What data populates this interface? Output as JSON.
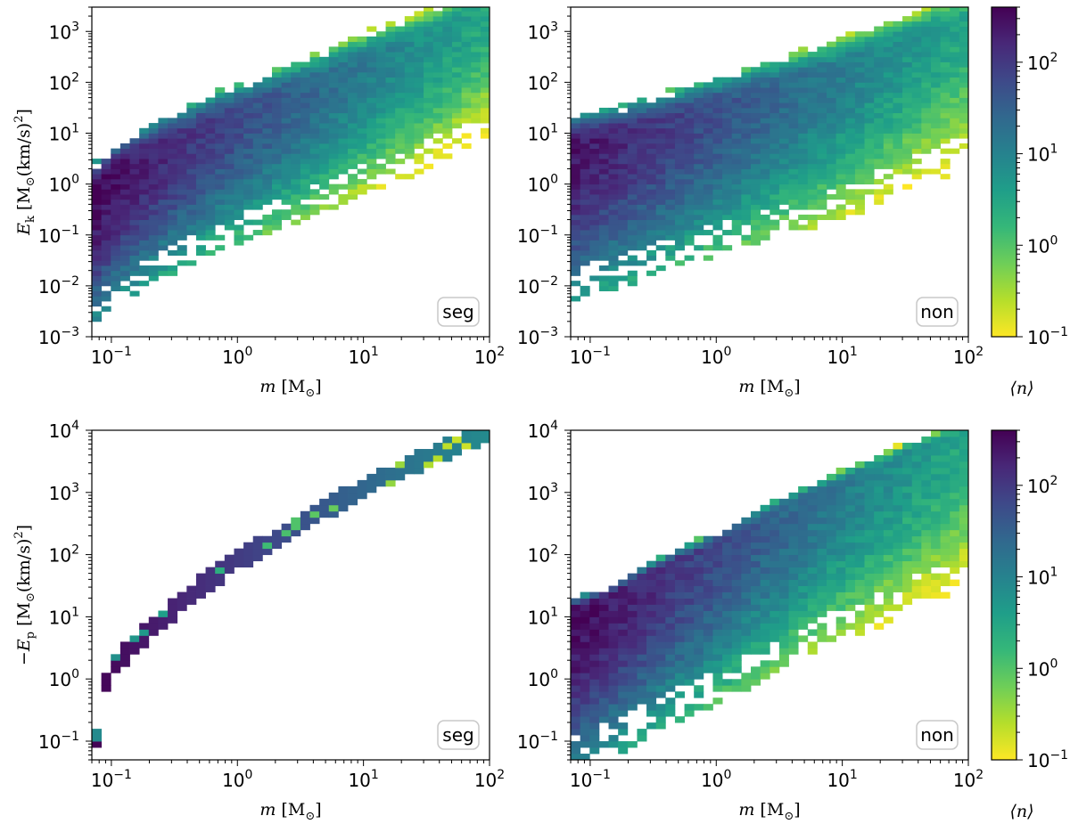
{
  "figure": {
    "colorbar_label": "⟨n⟩"
  },
  "colormap": {
    "name": "viridis (reversed)",
    "stops": [
      "#fde725",
      "#b5de2b",
      "#6ece58",
      "#35b779",
      "#1f9e89",
      "#26828e",
      "#31688e",
      "#3e4989",
      "#482878",
      "#440154"
    ],
    "range": [
      0.1,
      400
    ],
    "scale": "log"
  },
  "colorbar": {
    "ticks": [
      {
        "base": "10",
        "exp": "2",
        "value": 100
      },
      {
        "base": "10",
        "exp": "1",
        "value": 10
      },
      {
        "base": "10",
        "exp": "0",
        "value": 1
      },
      {
        "base": "10",
        "exp": "−1",
        "value": 0.1
      }
    ]
  },
  "chart_data": [
    {
      "type": "heatmap",
      "panel": "top-left",
      "tag": "seg",
      "xlabel": "m [M⊙]",
      "ylabel": "E_k [M⊙(km/s)²]",
      "ylabel_parts": {
        "sym": "E",
        "sub": "k",
        "unit_pre": " [M",
        "unit_sub": "⊙",
        "unit_post": "(km/s)",
        "unit_sup": "2",
        "unit_end": "]"
      },
      "xscale": "log",
      "yscale": "log",
      "xlim": [
        0.07,
        100
      ],
      "ylim": [
        0.001,
        3000
      ],
      "xticks": [
        {
          "base": "10",
          "exp": "−1",
          "value": 0.1
        },
        {
          "base": "10",
          "exp": "0",
          "value": 1
        },
        {
          "base": "10",
          "exp": "1",
          "value": 10
        },
        {
          "base": "10",
          "exp": "2",
          "value": 100
        }
      ],
      "yticks": [
        {
          "base": "10",
          "exp": "3",
          "value": 1000
        },
        {
          "base": "10",
          "exp": "2",
          "value": 100
        },
        {
          "base": "10",
          "exp": "1",
          "value": 10
        },
        {
          "base": "10",
          "exp": "0",
          "value": 1
        },
        {
          "base": "10",
          "exp": "−1",
          "value": 0.1
        },
        {
          "base": "10",
          "exp": "−2",
          "value": 0.01
        },
        {
          "base": "10",
          "exp": "−3",
          "value": 0.001
        }
      ],
      "ridge": [
        {
          "x": 0.07,
          "y": 0.6
        },
        {
          "x": 0.1,
          "y": 1.5
        },
        {
          "x": 0.2,
          "y": 4
        },
        {
          "x": 0.5,
          "y": 12
        },
        {
          "x": 1,
          "y": 25
        },
        {
          "x": 3,
          "y": 70
        },
        {
          "x": 10,
          "y": 250
        },
        {
          "x": 30,
          "y": 700
        },
        {
          "x": 100,
          "y": 3000
        }
      ],
      "peak_n": 400,
      "decay_mass": 1.5,
      "spread_upper_dex": 0.6,
      "spread_lower_dex": 2.6
    },
    {
      "type": "heatmap",
      "panel": "top-right",
      "tag": "non",
      "xlabel": "m [M⊙]",
      "ylabel": "",
      "xscale": "log",
      "yscale": "log",
      "xlim": [
        0.07,
        100
      ],
      "ylim": [
        0.001,
        3000
      ],
      "xticks": [
        {
          "base": "10",
          "exp": "−1",
          "value": 0.1
        },
        {
          "base": "10",
          "exp": "0",
          "value": 1
        },
        {
          "base": "10",
          "exp": "1",
          "value": 10
        },
        {
          "base": "10",
          "exp": "2",
          "value": 100
        }
      ],
      "yticks": [
        {
          "base": "10",
          "exp": "3",
          "value": 1000
        },
        {
          "base": "10",
          "exp": "2",
          "value": 100
        },
        {
          "base": "10",
          "exp": "1",
          "value": 10
        },
        {
          "base": "10",
          "exp": "0",
          "value": 1
        },
        {
          "base": "10",
          "exp": "−1",
          "value": 0.1
        },
        {
          "base": "10",
          "exp": "−2",
          "value": 0.01
        },
        {
          "base": "10",
          "exp": "−3",
          "value": 0.001
        }
      ],
      "ridge": [
        {
          "x": 0.07,
          "y": 5
        },
        {
          "x": 0.1,
          "y": 7
        },
        {
          "x": 0.2,
          "y": 10
        },
        {
          "x": 0.5,
          "y": 20
        },
        {
          "x": 1,
          "y": 35
        },
        {
          "x": 3,
          "y": 80
        },
        {
          "x": 10,
          "y": 200
        },
        {
          "x": 30,
          "y": 600
        },
        {
          "x": 100,
          "y": 2000
        }
      ],
      "peak_n": 300,
      "decay_mass": 1.5,
      "spread_upper_dex": 0.6,
      "spread_lower_dex": 3.0
    },
    {
      "type": "heatmap",
      "panel": "bottom-left",
      "tag": "seg",
      "xlabel": "m [M⊙]",
      "ylabel": "−E_p [M⊙(km/s)²]",
      "ylabel_parts": {
        "sym": "−E",
        "sub": "p",
        "unit_pre": " [M",
        "unit_sub": "⊙",
        "unit_post": "(km/s)",
        "unit_sup": "2",
        "unit_end": "]"
      },
      "xscale": "log",
      "yscale": "log",
      "xlim": [
        0.07,
        100
      ],
      "ylim": [
        0.05,
        10000
      ],
      "xticks": [
        {
          "base": "10",
          "exp": "−1",
          "value": 0.1
        },
        {
          "base": "10",
          "exp": "0",
          "value": 1
        },
        {
          "base": "10",
          "exp": "1",
          "value": 10
        },
        {
          "base": "10",
          "exp": "2",
          "value": 100
        }
      ],
      "yticks": [
        {
          "base": "10",
          "exp": "4",
          "value": 10000
        },
        {
          "base": "10",
          "exp": "3",
          "value": 1000
        },
        {
          "base": "10",
          "exp": "2",
          "value": 100
        },
        {
          "base": "10",
          "exp": "1",
          "value": 10
        },
        {
          "base": "10",
          "exp": "0",
          "value": 1
        },
        {
          "base": "10",
          "exp": "−1",
          "value": 0.1
        }
      ],
      "ridge": [
        {
          "x": 0.075,
          "y": 0.06
        },
        {
          "x": 0.08,
          "y": 0.5
        },
        {
          "x": 0.1,
          "y": 1.5
        },
        {
          "x": 0.2,
          "y": 6
        },
        {
          "x": 0.5,
          "y": 30
        },
        {
          "x": 1,
          "y": 80
        },
        {
          "x": 3,
          "y": 300
        },
        {
          "x": 10,
          "y": 1200
        },
        {
          "x": 30,
          "y": 3500
        },
        {
          "x": 100,
          "y": 10000
        }
      ],
      "peak_n": 400,
      "decay_mass": 3,
      "spread_upper_dex": 0.0,
      "spread_lower_dex": 0.0
    },
    {
      "type": "heatmap",
      "panel": "bottom-right",
      "tag": "non",
      "xlabel": "m [M⊙]",
      "ylabel": "",
      "xscale": "log",
      "yscale": "log",
      "xlim": [
        0.07,
        100
      ],
      "ylim": [
        0.05,
        10000
      ],
      "xticks": [
        {
          "base": "10",
          "exp": "−1",
          "value": 0.1
        },
        {
          "base": "10",
          "exp": "0",
          "value": 1
        },
        {
          "base": "10",
          "exp": "1",
          "value": 10
        },
        {
          "base": "10",
          "exp": "2",
          "value": 100
        }
      ],
      "yticks": [
        {
          "base": "10",
          "exp": "4",
          "value": 10000
        },
        {
          "base": "10",
          "exp": "3",
          "value": 1000
        },
        {
          "base": "10",
          "exp": "2",
          "value": 100
        },
        {
          "base": "10",
          "exp": "1",
          "value": 10
        },
        {
          "base": "10",
          "exp": "0",
          "value": 1
        },
        {
          "base": "10",
          "exp": "−1",
          "value": 0.1
        }
      ],
      "ridge": [
        {
          "x": 0.07,
          "y": 12
        },
        {
          "x": 0.1,
          "y": 15
        },
        {
          "x": 0.2,
          "y": 30
        },
        {
          "x": 0.5,
          "y": 80
        },
        {
          "x": 1,
          "y": 150
        },
        {
          "x": 3,
          "y": 500
        },
        {
          "x": 10,
          "y": 1500
        },
        {
          "x": 30,
          "y": 4000
        },
        {
          "x": 100,
          "y": 10000
        }
      ],
      "peak_n": 400,
      "decay_mass": 1.5,
      "spread_upper_dex": 0.2,
      "spread_lower_dex": 2.6
    }
  ]
}
